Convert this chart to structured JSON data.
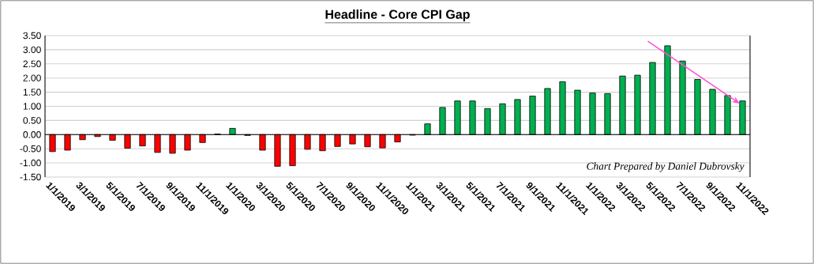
{
  "chart_data": {
    "type": "bar",
    "title": "Headline - Core CPI Gap",
    "categories": [
      "1/1/2019",
      null,
      "3/1/2019",
      null,
      "5/1/2019",
      null,
      "7/1/2019",
      null,
      "9/1/2019",
      null,
      "11/1/2019",
      null,
      "1/1/2020",
      null,
      "3/1/2020",
      null,
      "5/1/2020",
      null,
      "7/1/2020",
      null,
      "9/1/2020",
      null,
      "11/1/2020",
      null,
      "1/1/2021",
      null,
      "3/1/2021",
      null,
      "5/1/2021",
      null,
      "7/1/2021",
      null,
      "9/1/2021",
      null,
      "11/1/2021",
      null,
      "1/1/2022",
      null,
      "3/1/2022",
      null,
      "5/1/2022",
      null,
      "7/1/2022",
      null,
      "9/1/2022",
      null,
      "11/1/2022"
    ],
    "values": [
      -0.6,
      -0.55,
      -0.18,
      -0.07,
      -0.2,
      -0.48,
      -0.4,
      -0.63,
      -0.66,
      -0.55,
      -0.28,
      0.02,
      0.22,
      -0.03,
      -0.55,
      -1.12,
      -1.1,
      -0.52,
      -0.57,
      -0.42,
      -0.33,
      -0.43,
      -0.47,
      -0.26,
      -0.02,
      0.38,
      0.96,
      1.19,
      1.19,
      0.92,
      1.09,
      1.24,
      1.36,
      1.63,
      1.87,
      1.57,
      1.47,
      1.45,
      2.07,
      2.1,
      2.55,
      3.14,
      2.6,
      1.95,
      1.6,
      1.38,
      1.19
    ],
    "colors": [
      "#ff0000",
      "#ff0000",
      "#ff0000",
      "#ff0000",
      "#ff0000",
      "#ff0000",
      "#ff0000",
      "#ff0000",
      "#ff0000",
      "#ff0000",
      "#ff0000",
      "#00b050",
      "#00b050",
      "#ff0000",
      "#ff0000",
      "#ff0000",
      "#ff0000",
      "#ff0000",
      "#ff0000",
      "#ff0000",
      "#ff0000",
      "#ff0000",
      "#ff0000",
      "#ff0000",
      "#ff0000",
      "#00b050",
      "#00b050",
      "#00b050",
      "#00b050",
      "#00b050",
      "#00b050",
      "#00b050",
      "#00b050",
      "#00b050",
      "#00b050",
      "#00b050",
      "#00b050",
      "#00b050",
      "#00b050",
      "#00b050",
      "#00b050",
      "#00b050",
      "#00b050",
      "#00b050",
      "#00b050",
      "#00b050",
      "#00b050"
    ],
    "ylim": [
      -1.5,
      3.5
    ],
    "yticks": [
      {
        "value": -1.5,
        "label": "-1.50"
      },
      {
        "value": -1.0,
        "label": "-1.00"
      },
      {
        "value": -0.5,
        "label": "-0.50"
      },
      {
        "value": 0,
        "label": "0.00"
      },
      {
        "value": 0.5,
        "label": "0.50"
      },
      {
        "value": 1.0,
        "label": "1.00"
      },
      {
        "value": 1.5,
        "label": "1.50"
      },
      {
        "value": 2.0,
        "label": "2.00"
      },
      {
        "value": 2.5,
        "label": "2.50"
      },
      {
        "value": 3.0,
        "label": "3.00"
      },
      {
        "value": 3.5,
        "label": "3.50"
      }
    ],
    "grid": "y",
    "annotations": [
      "Chart Prepared by Daniel Dubrovsky"
    ]
  }
}
